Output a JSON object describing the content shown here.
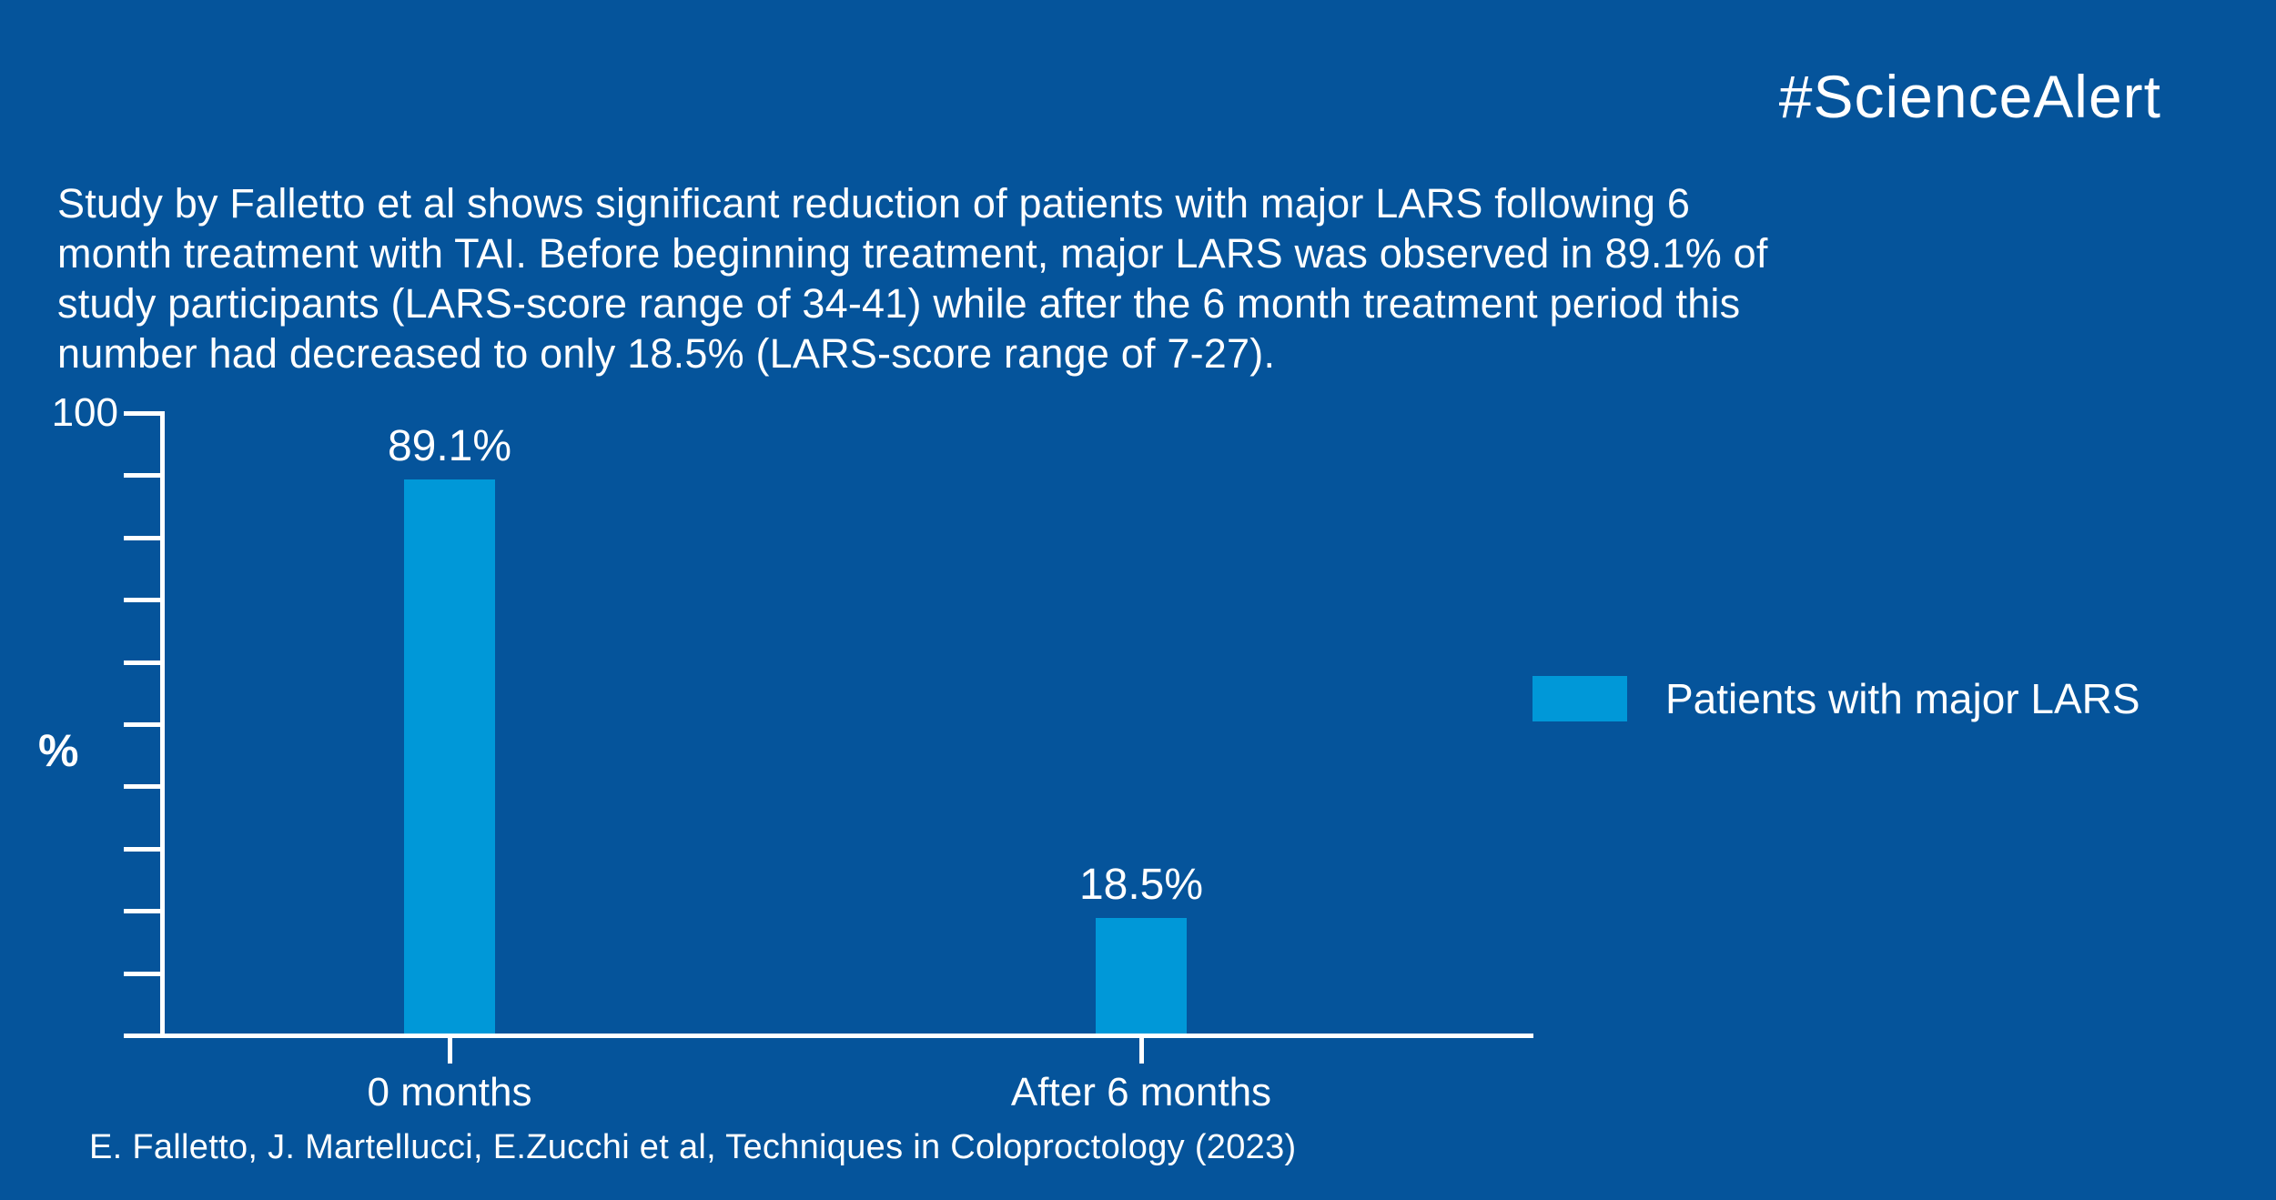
{
  "header": {
    "title": "#ScienceAlert"
  },
  "intro": {
    "text": "Study by Falletto et al shows significant reduction of patients with major LARS following 6\nmonth treatment with TAI. Before beginning treatment, major LARS was observed in 89.1% of\nstudy participants (LARS-score range of 34-41) while after the 6 month treatment period this\nnumber had decreased to only 18.5% (LARS-score range of 7-27)."
  },
  "chart_data": {
    "type": "bar",
    "categories": [
      "0 months",
      "After 6 months"
    ],
    "values": [
      89.1,
      18.5
    ],
    "value_labels": [
      "89.1%",
      "18.5%"
    ],
    "title": "",
    "xlabel": "",
    "ylabel": "%",
    "ylim": [
      0,
      100
    ],
    "ytick_step": 10,
    "ytick_top_label": "100",
    "grid": false,
    "bar_color": "#0098d8",
    "axis_color": "#ffffff",
    "legend": {
      "position": "right",
      "items": [
        {
          "label": "Patients with major LARS",
          "color": "#0098d8"
        }
      ]
    }
  },
  "footer": {
    "citation": "E. Falletto, J. Martellucci, E.Zucchi et al, Techniques in Coloproctology (2023)"
  },
  "colors": {
    "background": "#05549b",
    "accent": "#0098d8",
    "text": "#ffffff"
  }
}
